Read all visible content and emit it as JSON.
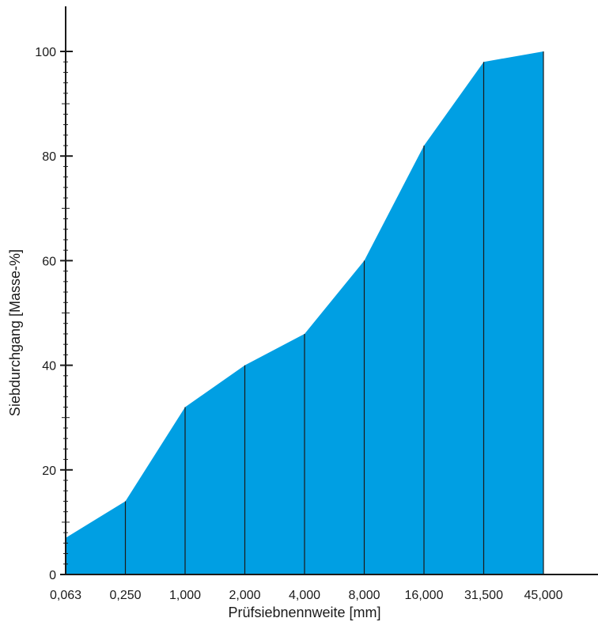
{
  "chart_data": {
    "type": "area",
    "title": "",
    "xlabel": "Prüfsiebnennweite [mm]",
    "ylabel": "Siebdurchgang [Masse-%]",
    "x_categories": [
      "0,063",
      "0,250",
      "1,000",
      "2,000",
      "4,000",
      "8,000",
      "16,000",
      "31,500",
      "45,000"
    ],
    "series": [
      {
        "values": [
          7,
          14,
          32,
          40,
          46,
          60,
          82,
          98,
          100
        ]
      }
    ],
    "ylim": [
      0,
      100
    ],
    "y_major_ticks": [
      0,
      20,
      40,
      60,
      80,
      100
    ],
    "y_tick_labels": [
      "0",
      "20",
      "40",
      "60",
      "80",
      "100"
    ],
    "y_minor_step": 2,
    "grid": false,
    "legend": "none",
    "fill_color": "#009fe3",
    "line_color": "#1a1a1a"
  }
}
